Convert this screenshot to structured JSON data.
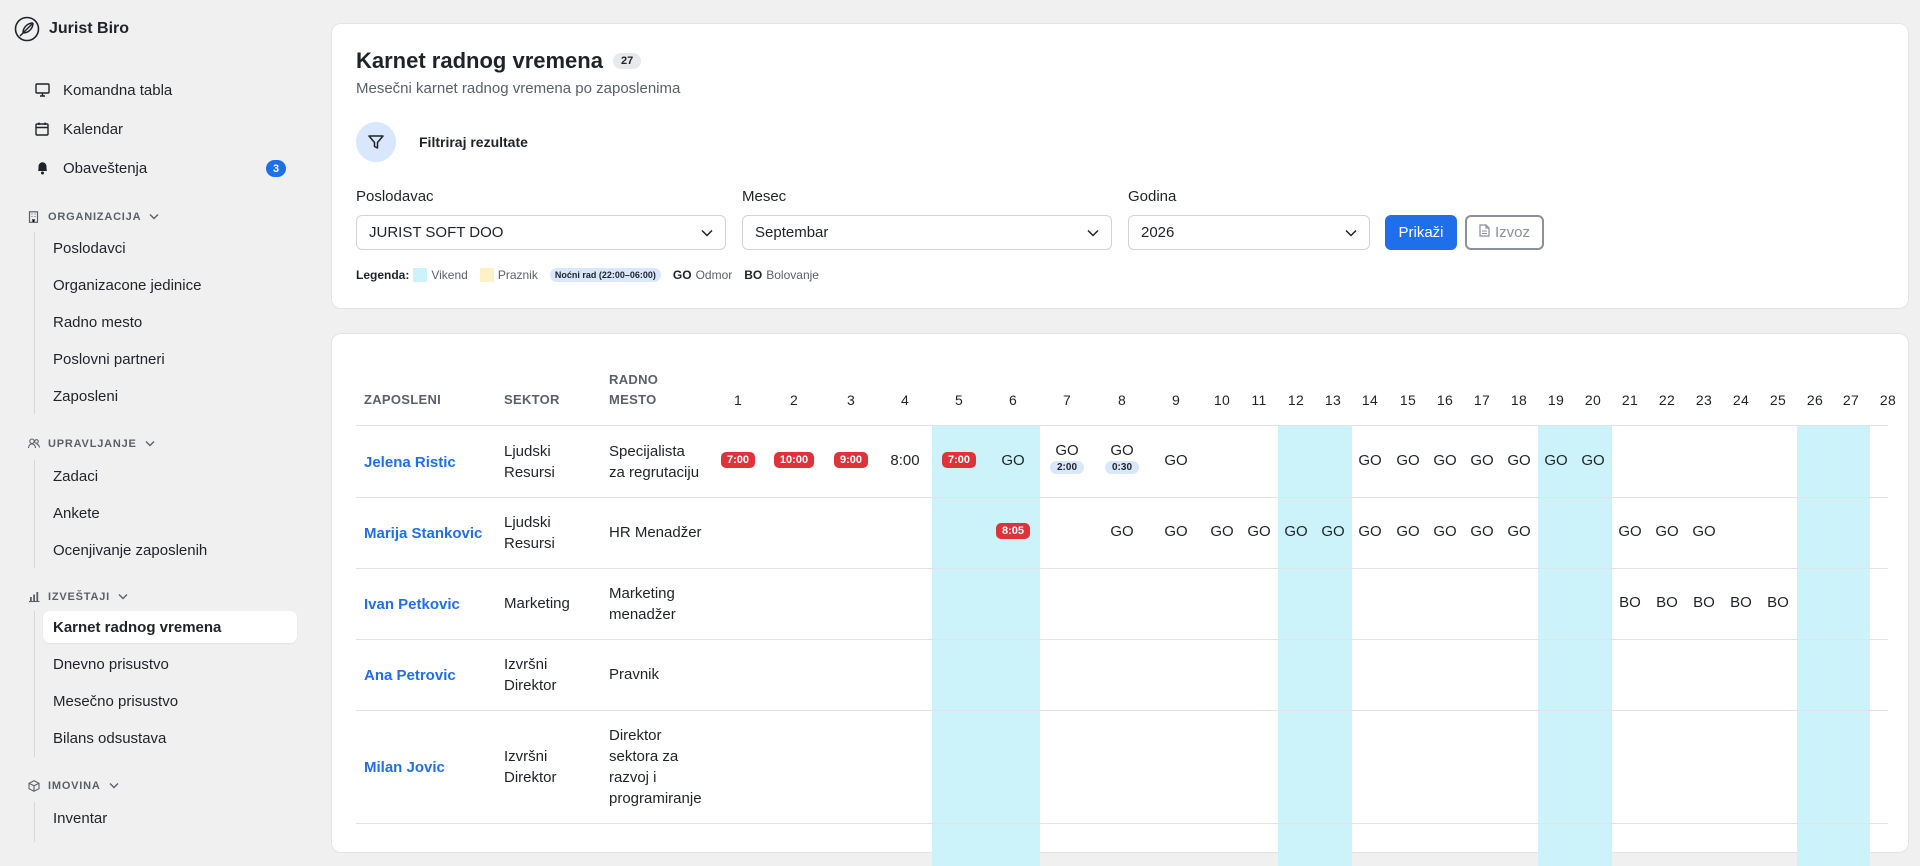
{
  "brand": {
    "name": "Jurist Biro"
  },
  "nav": {
    "top": [
      {
        "label": "Komandna tabla",
        "icon": "monitor-icon"
      },
      {
        "label": "Kalendar",
        "icon": "calendar-icon"
      },
      {
        "label": "Obaveštenja",
        "icon": "bell-icon",
        "badge": "3"
      }
    ],
    "sections": [
      {
        "title": "ORGANIZACIJA",
        "icon": "building-icon",
        "items": [
          "Poslodavci",
          "Organizacone jedinice",
          "Radno mesto",
          "Poslovni partneri",
          "Zaposleni"
        ]
      },
      {
        "title": "UPRAVLJANJE",
        "icon": "users-icon",
        "items": [
          "Zadaci",
          "Ankete",
          "Ocenjivanje zaposlenih"
        ]
      },
      {
        "title": "IZVEŠTAJI",
        "icon": "bar-chart-icon",
        "items": [
          "Karnet radnog vremena",
          "Dnevno prisustvo",
          "Mesečno prisustvo",
          "Bilans odsustava"
        ],
        "active": "Karnet radnog vremena"
      },
      {
        "title": "IMOVINA",
        "icon": "box-icon",
        "items": [
          "Inventar"
        ]
      }
    ]
  },
  "header": {
    "title": "Karnet radnog vremena",
    "count": "27",
    "subtitle": "Mesečni karnet radnog vremena po zaposlenima",
    "filter_label": "Filtriraj rezultate"
  },
  "filters": {
    "employer": {
      "label": "Poslodavac",
      "value": "JURIST SOFT DOO"
    },
    "month": {
      "label": "Mesec",
      "value": "Septembar"
    },
    "year": {
      "label": "Godina",
      "value": "2026"
    },
    "show_button": "Prikaži",
    "export_button": "Izvoz"
  },
  "legend": {
    "label": "Legenda:",
    "weekend": "Vikend",
    "holiday": "Praznik",
    "night": "Noćni rad (22:00–06:00)",
    "go_code": "GO",
    "go_text": "Odmor",
    "bo_code": "BO",
    "bo_text": "Bolovanje",
    "colors": {
      "weekend": "#cdf3fa",
      "holiday": "#fdf1c8",
      "night": "#d8e7fb",
      "late": "#e0323b",
      "accent": "#1f6feb"
    }
  },
  "table": {
    "headers": {
      "employee": "ZAPOSLENI",
      "sector": "SEKTOR",
      "position_1": "RADNO",
      "position_2": "MESTO"
    },
    "days": [
      "1",
      "2",
      "3",
      "4",
      "5",
      "6",
      "7",
      "8",
      "9",
      "10",
      "11",
      "12",
      "13",
      "14",
      "15",
      "16",
      "17",
      "18",
      "19",
      "20",
      "21",
      "22",
      "23",
      "24",
      "25",
      "26",
      "27",
      "28"
    ],
    "weekend_days": [
      "5",
      "6",
      "12",
      "13",
      "19",
      "20",
      "26",
      "27"
    ],
    "rows": [
      {
        "name": "Jelena Ristic",
        "sector": [
          "Ljudski",
          "Resursi"
        ],
        "position": [
          "Specijalista",
          "za regrutaciju"
        ],
        "days": {
          "1": {
            "red": "7:00"
          },
          "2": {
            "red": "10:00"
          },
          "3": {
            "red": "9:00"
          },
          "4": {
            "text": "8:00"
          },
          "5": {
            "red": "7:00"
          },
          "6": {
            "text": "GO"
          },
          "7": {
            "text": "GO",
            "night": "2:00"
          },
          "8": {
            "text": "GO",
            "night": "0:30"
          },
          "9": {
            "text": "GO"
          },
          "14": {
            "text": "GO"
          },
          "15": {
            "text": "GO"
          },
          "16": {
            "text": "GO"
          },
          "17": {
            "text": "GO"
          },
          "18": {
            "text": "GO"
          },
          "19": {
            "text": "GO"
          },
          "20": {
            "text": "GO"
          }
        }
      },
      {
        "name": "Marija Stankovic",
        "sector": [
          "Ljudski",
          "Resursi"
        ],
        "position": [
          "HR Menadžer"
        ],
        "days": {
          "6": {
            "red": "8:05"
          },
          "8": {
            "text": "GO"
          },
          "9": {
            "text": "GO"
          },
          "10": {
            "text": "GO"
          },
          "11": {
            "text": "GO"
          },
          "12": {
            "text": "GO"
          },
          "13": {
            "text": "GO"
          },
          "14": {
            "text": "GO"
          },
          "15": {
            "text": "GO"
          },
          "16": {
            "text": "GO"
          },
          "17": {
            "text": "GO"
          },
          "18": {
            "text": "GO"
          },
          "21": {
            "text": "GO"
          },
          "22": {
            "text": "GO"
          },
          "23": {
            "text": "GO"
          }
        }
      },
      {
        "name": "Ivan Petkovic",
        "sector": [
          "Marketing"
        ],
        "position": [
          "Marketing",
          "menadžer"
        ],
        "days": {
          "21": {
            "text": "BO"
          },
          "22": {
            "text": "BO"
          },
          "23": {
            "text": "BO"
          },
          "24": {
            "text": "BO"
          },
          "25": {
            "text": "BO"
          }
        }
      },
      {
        "name": "Ana Petrovic",
        "sector": [
          "Izvršni",
          "Direktor"
        ],
        "position": [
          "Pravnik"
        ],
        "days": {}
      },
      {
        "name": "Milan Jovic",
        "sector": [
          "Izvršni",
          "Direktor"
        ],
        "position": [
          "Direktor",
          "sektora za",
          "razvoj i",
          "programiranje"
        ],
        "days": {}
      }
    ]
  }
}
